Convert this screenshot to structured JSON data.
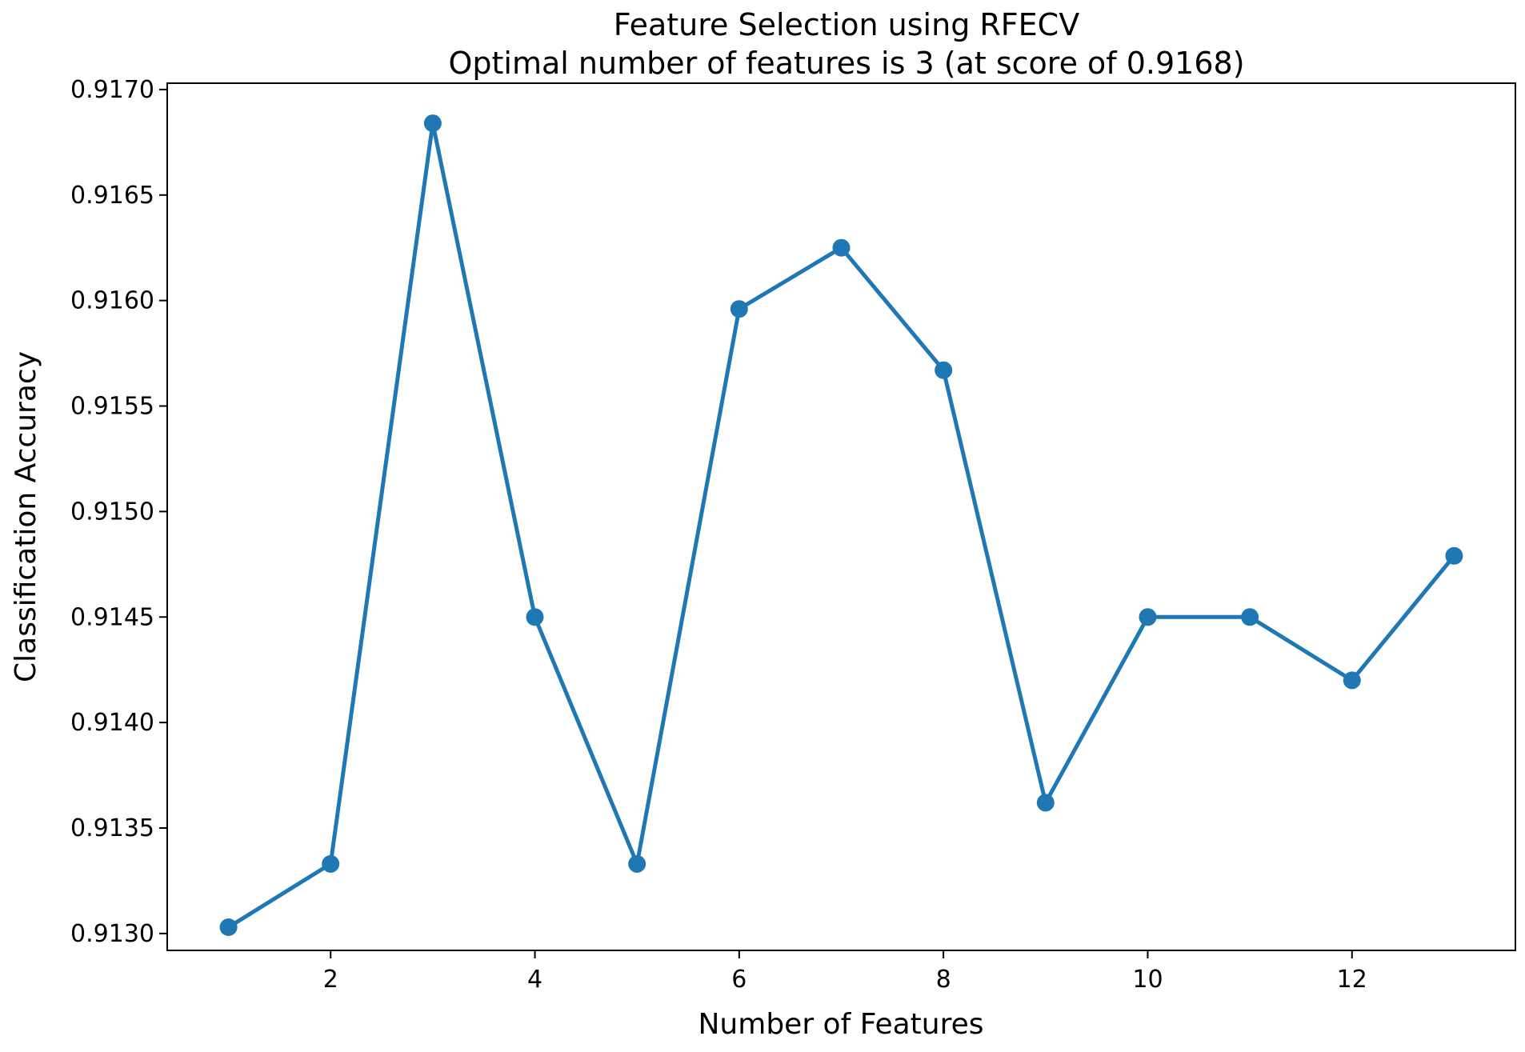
{
  "chart_data": {
    "type": "line",
    "title": "Feature Selection using RFECV",
    "subtitle": "Optimal number of features is 3 (at score of 0.9168)",
    "xlabel": "Number of Features",
    "ylabel": "Classification Accuracy",
    "x": [
      1,
      2,
      3,
      4,
      5,
      6,
      7,
      8,
      9,
      10,
      11,
      12,
      13
    ],
    "series": [
      {
        "values": [
          0.91303,
          0.91333,
          0.91684,
          0.9145,
          0.91333,
          0.91596,
          0.91625,
          0.91567,
          0.91362,
          0.9145,
          0.9145,
          0.9142,
          0.91479
        ],
        "color": "#1f77b4"
      }
    ],
    "xlim": [
      0.4,
      13.6
    ],
    "ylim": [
      0.91292,
      0.91703
    ],
    "xticks": [
      2,
      4,
      6,
      8,
      10,
      12
    ],
    "xtick_labels": [
      "2",
      "4",
      "6",
      "8",
      "10",
      "12"
    ],
    "yticks": [
      0.913,
      0.9135,
      0.914,
      0.9145,
      0.915,
      0.9155,
      0.916,
      0.9165,
      0.917
    ],
    "ytick_labels": [
      "0.9130",
      "0.9135",
      "0.9140",
      "0.9145",
      "0.9150",
      "0.9155",
      "0.9160",
      "0.9165",
      "0.9170"
    ],
    "grid": false,
    "legend": "none",
    "markers": true
  }
}
